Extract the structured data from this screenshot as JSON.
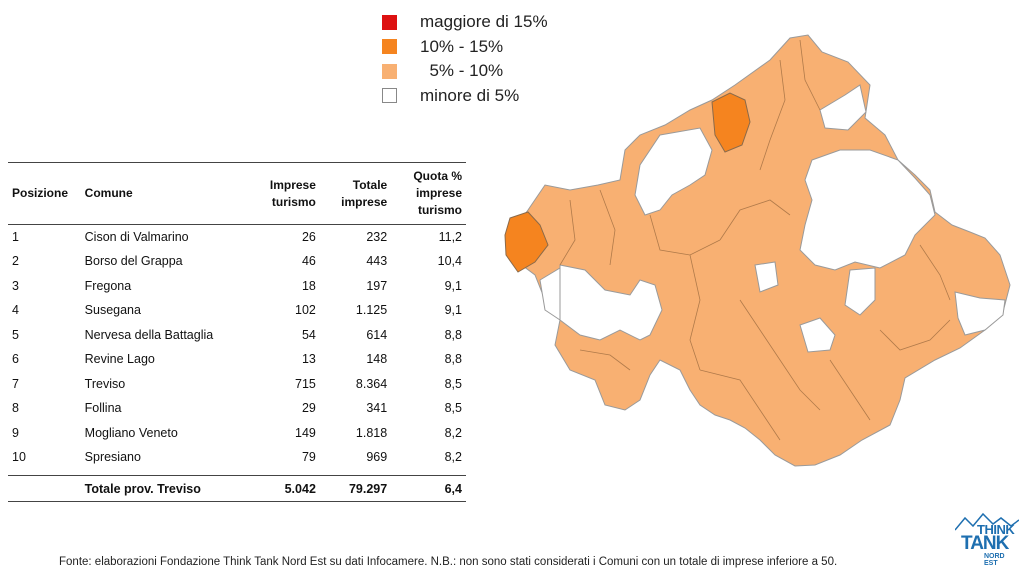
{
  "legend": {
    "items": [
      {
        "label": "maggiore di 15%",
        "color": "#dd1111"
      },
      {
        "label": "10% - 15%",
        "color": "#f5841f"
      },
      {
        "label": "  5% - 10%",
        "color": "#f8b072"
      },
      {
        "label": "minore di 5%",
        "color": "#ffffff"
      }
    ]
  },
  "table": {
    "headers": {
      "posizione": "Posizione",
      "comune": "Comune",
      "imprese": "Imprese turismo",
      "totale": "Totale imprese",
      "quota": "Quota % imprese turismo"
    },
    "rows": [
      {
        "pos": "1",
        "comune": "Cison di Valmarino",
        "imprese": "26",
        "totale": "232",
        "quota": "11,2"
      },
      {
        "pos": "2",
        "comune": "Borso del Grappa",
        "imprese": "46",
        "totale": "443",
        "quota": "10,4"
      },
      {
        "pos": "3",
        "comune": "Fregona",
        "imprese": "18",
        "totale": "197",
        "quota": "9,1"
      },
      {
        "pos": "4",
        "comune": "Susegana",
        "imprese": "102",
        "totale": "1.125",
        "quota": "9,1"
      },
      {
        "pos": "5",
        "comune": "Nervesa della Battaglia",
        "imprese": "54",
        "totale": "614",
        "quota": "8,8"
      },
      {
        "pos": "6",
        "comune": "Revine Lago",
        "imprese": "13",
        "totale": "148",
        "quota": "8,8"
      },
      {
        "pos": "7",
        "comune": "Treviso",
        "imprese": "715",
        "totale": "8.364",
        "quota": "8,5"
      },
      {
        "pos": "8",
        "comune": "Follina",
        "imprese": "29",
        "totale": "341",
        "quota": "8,5"
      },
      {
        "pos": "9",
        "comune": "Mogliano Veneto",
        "imprese": "149",
        "totale": "1.818",
        "quota": "8,2"
      },
      {
        "pos": "10",
        "comune": "Spresiano",
        "imprese": "79",
        "totale": "969",
        "quota": "8,2"
      }
    ],
    "total": {
      "label": "Totale prov. Treviso",
      "imprese": "5.042",
      "totale": "79.297",
      "quota": "6,4"
    }
  },
  "source_note": "Fonte: elaborazioni Fondazione Think Tank Nord Est su dati Infocamere. N.B.: non sono stati considerati i Comuni con un totale di imprese inferiore a 50.",
  "logo": {
    "line1": "THINK",
    "line2": "TANK",
    "line3": "NORD EST",
    "color": "#1e6fb0"
  },
  "map_colors": {
    "high": "#f5841f",
    "mid": "#f8b072",
    "low": "#ffffff",
    "border": "#9a9a9a"
  }
}
